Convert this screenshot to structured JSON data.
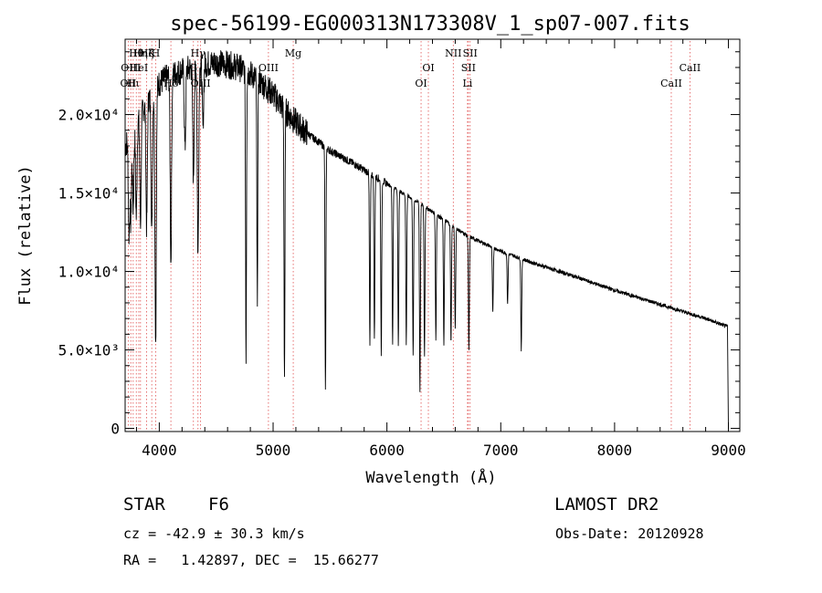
{
  "chart_data": {
    "type": "line",
    "title": "spec-56199-EG000313N173308V_1_sp07-007.fits",
    "xlabel": "Wavelength (Å)",
    "ylabel": "Flux (relative)",
    "xlim": [
      3700,
      9100
    ],
    "ylim": [
      -200,
      24800
    ],
    "x_ticks": [
      4000,
      5000,
      6000,
      7000,
      8000,
      9000
    ],
    "y_ticks": [
      {
        "value": 0,
        "label": "0"
      },
      {
        "value": 5000,
        "label": "5.0×10³"
      },
      {
        "value": 10000,
        "label": "1.0×10⁴"
      },
      {
        "value": 15000,
        "label": "1.5×10⁴"
      },
      {
        "value": 20000,
        "label": "2.0×10⁴"
      }
    ],
    "continuum": {
      "x": [
        3700,
        3800,
        3900,
        4000,
        4100,
        4200,
        4300,
        4400,
        4500,
        4600,
        4700,
        4800,
        4900,
        5000,
        5100,
        5200,
        5300,
        5500,
        5700,
        6000,
        6300,
        6500,
        6700,
        7000,
        7300,
        7600,
        8000,
        8400,
        8800,
        8980
      ],
      "y": [
        18000,
        19500,
        21000,
        22000,
        22500,
        22800,
        23000,
        23200,
        23300,
        23200,
        23000,
        22600,
        22000,
        21300,
        20300,
        19500,
        18800,
        17700,
        16900,
        15600,
        14300,
        13300,
        12300,
        11300,
        10500,
        9800,
        8800,
        7900,
        7000,
        6500
      ]
    },
    "absorption_lines": [
      {
        "x": 3734,
        "depth": 6000
      },
      {
        "x": 3750,
        "depth": 5500
      },
      {
        "x": 3771,
        "depth": 5000
      },
      {
        "x": 3798,
        "depth": 6000
      },
      {
        "x": 3835,
        "depth": 7000
      },
      {
        "x": 3889,
        "depth": 8000
      },
      {
        "x": 3934,
        "depth": 9000
      },
      {
        "x": 3968,
        "depth": 16000
      },
      {
        "x": 4102,
        "depth": 12000
      },
      {
        "x": 4226,
        "depth": 5000
      },
      {
        "x": 4300,
        "depth": 7000
      },
      {
        "x": 4340,
        "depth": 12000
      },
      {
        "x": 4384,
        "depth": 4000
      },
      {
        "x": 4762,
        "depth": 18000
      },
      {
        "x": 4861,
        "depth": 14000
      },
      {
        "x": 5100,
        "depth": 17000
      },
      {
        "x": 5460,
        "depth": 15600
      },
      {
        "x": 5850,
        "depth": 11000
      },
      {
        "x": 5890,
        "depth": 10500
      },
      {
        "x": 5950,
        "depth": 11000
      },
      {
        "x": 6050,
        "depth": 10000
      },
      {
        "x": 6100,
        "depth": 10000
      },
      {
        "x": 6170,
        "depth": 9500
      },
      {
        "x": 6230,
        "depth": 10000
      },
      {
        "x": 6290,
        "depth": 12000
      },
      {
        "x": 6330,
        "depth": 9500
      },
      {
        "x": 6430,
        "depth": 8000
      },
      {
        "x": 6500,
        "depth": 8000
      },
      {
        "x": 6563,
        "depth": 7500
      },
      {
        "x": 6600,
        "depth": 6500
      },
      {
        "x": 6720,
        "depth": 7200
      },
      {
        "x": 6930,
        "depth": 4200
      },
      {
        "x": 7060,
        "depth": 3200
      },
      {
        "x": 7180,
        "depth": 5800
      }
    ],
    "end_drop": {
      "x": 9000,
      "y": 0
    },
    "reference_lines": [
      {
        "x": 3727,
        "label": "OII",
        "row": 2
      },
      {
        "x": 3750,
        "label": "OIII",
        "row": 1
      },
      {
        "x": 3771,
        "label": "Hι",
        "row": 2
      },
      {
        "x": 3798,
        "label": "Hθ",
        "row": 0
      },
      {
        "x": 3820,
        "label": "HeI",
        "row": 1
      },
      {
        "x": 3835,
        "label": "Hη",
        "row": 0
      },
      {
        "x": 3889,
        "label": "Hζ",
        "row": 0
      },
      {
        "x": 3934,
        "label": "K",
        "row": 0
      },
      {
        "x": 3968,
        "label": "H",
        "row": 0
      },
      {
        "x": 4102,
        "label": "Hδ",
        "row": 2
      },
      {
        "x": 4300,
        "label": "G",
        "row": 1
      },
      {
        "x": 4340,
        "label": "Hγ",
        "row": 0
      },
      {
        "x": 4363,
        "label": "OIII",
        "row": 2
      },
      {
        "x": 4959,
        "label": "OIII",
        "row": 1
      },
      {
        "x": 5177,
        "label": "Mg",
        "row": 0
      },
      {
        "x": 6300,
        "label": "OI",
        "row": 2
      },
      {
        "x": 6364,
        "label": "OI",
        "row": 1
      },
      {
        "x": 6583,
        "label": "NII",
        "row": 0
      },
      {
        "x": 6716,
        "label": "SII",
        "row": 1
      },
      {
        "x": 6731,
        "label": "SII",
        "row": 0
      },
      {
        "x": 6708,
        "label": "Li",
        "row": 2
      },
      {
        "x": 8498,
        "label": "CaII",
        "row": 2
      },
      {
        "x": 8662,
        "label": "CaII",
        "row": 1
      }
    ],
    "reference_line_color": "#e05050",
    "grid": false,
    "legend": "none"
  },
  "footer": {
    "star_class": "STAR",
    "subclass": "F6",
    "survey": "LAMOST DR2",
    "cz": "cz = -42.9 ± 30.3 km/s",
    "obs_date": "Obs-Date: 20120928",
    "coords": "RA =   1.42897, DEC =  15.66277"
  }
}
